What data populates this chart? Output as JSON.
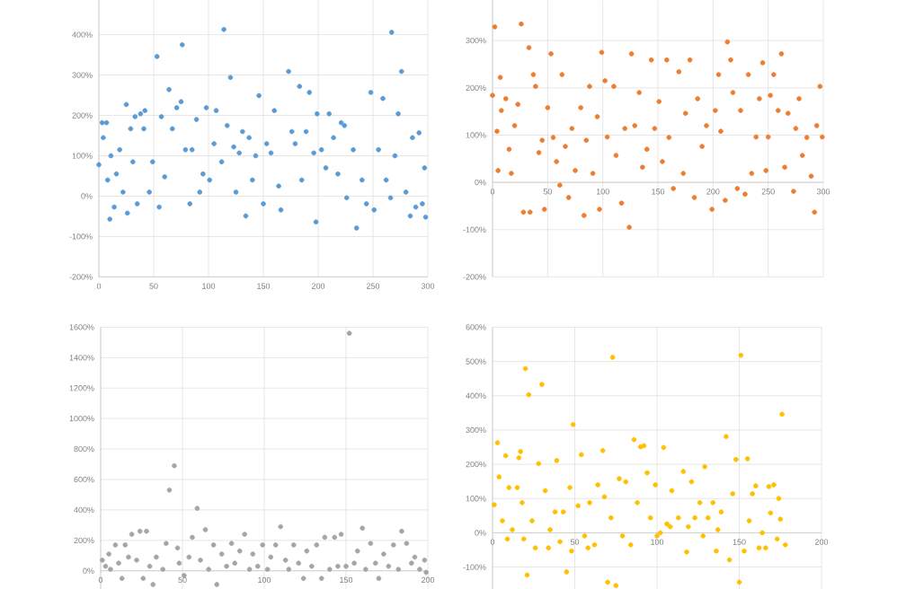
{
  "chart_data": [
    {
      "type": "scatter",
      "color": "#5b9bd5",
      "grid": true,
      "x": [
        0,
        3,
        7,
        4,
        8,
        10,
        11,
        14,
        16,
        19,
        22,
        25,
        26,
        29,
        31,
        33,
        35,
        38,
        41,
        42,
        46,
        49,
        53,
        55,
        57,
        60,
        64,
        67,
        71,
        75,
        76,
        79,
        83,
        85,
        89,
        92,
        95,
        98,
        101,
        105,
        107,
        112,
        114,
        117,
        120,
        123,
        125,
        128,
        131,
        134,
        137,
        140,
        143,
        146,
        150,
        153,
        157,
        160,
        164,
        166,
        173,
        176,
        179,
        183,
        185,
        189,
        192,
        196,
        198,
        199,
        203,
        207,
        210,
        214,
        218,
        221,
        224,
        226,
        232,
        235,
        240,
        244,
        248,
        251,
        255,
        259,
        262,
        266,
        267,
        270,
        273,
        276,
        280,
        284,
        286,
        289,
        292,
        295,
        297,
        298
      ],
      "values": [
        78,
        182,
        182,
        145,
        40,
        -57,
        100,
        -27,
        55,
        115,
        10,
        227,
        -42,
        167,
        85,
        197,
        -19,
        204,
        167,
        212,
        10,
        85,
        346,
        -27,
        197,
        48,
        264,
        167,
        219,
        234,
        375,
        115,
        -19,
        115,
        190,
        10,
        55,
        219,
        40,
        130,
        212,
        85,
        413,
        175,
        294,
        122,
        10,
        107,
        160,
        -49,
        145,
        40,
        100,
        249,
        -19,
        130,
        107,
        212,
        25,
        -34,
        309,
        160,
        130,
        272,
        40,
        160,
        257,
        107,
        -64,
        204,
        115,
        70,
        204,
        145,
        55,
        182,
        175,
        -4,
        115,
        -79,
        40,
        -19,
        257,
        -34,
        115,
        242,
        40,
        -4,
        406,
        100,
        204,
        309,
        10,
        -49,
        145,
        -27,
        157,
        -19,
        70,
        -52
      ],
      "xlim": [
        0,
        300
      ],
      "xticks": [
        0,
        50,
        100,
        150,
        200,
        250,
        300
      ],
      "ylim": [
        -200,
        485
      ],
      "yticks": [
        {
          "value": -200,
          "label": "-200%"
        },
        {
          "value": -100,
          "label": "-100%"
        },
        {
          "value": 0,
          "label": "0%"
        },
        {
          "value": 100,
          "label": "100%"
        },
        {
          "value": 200,
          "label": "200%"
        },
        {
          "value": 300,
          "label": "300%"
        },
        {
          "value": 400,
          "label": "400%"
        }
      ]
    },
    {
      "type": "scatter",
      "color": "#ed7d31",
      "grid": true,
      "x": [
        0,
        2,
        4,
        5,
        7,
        8,
        12,
        15,
        17,
        20,
        23,
        26,
        28,
        33,
        34,
        37,
        39,
        42,
        45,
        47,
        50,
        53,
        55,
        58,
        61,
        63,
        66,
        69,
        72,
        75,
        80,
        83,
        85,
        88,
        91,
        95,
        97,
        99,
        102,
        104,
        110,
        112,
        117,
        120,
        124,
        126,
        129,
        133,
        136,
        140,
        144,
        147,
        151,
        154,
        158,
        160,
        164,
        169,
        173,
        175,
        179,
        183,
        186,
        190,
        194,
        199,
        202,
        205,
        207,
        211,
        213,
        216,
        218,
        222,
        225,
        229,
        232,
        235,
        239,
        242,
        245,
        248,
        250,
        252,
        255,
        259,
        262,
        265,
        268,
        273,
        275,
        278,
        281,
        285,
        289,
        292,
        294,
        297,
        299
      ],
      "values": [
        184,
        329,
        108,
        25,
        222,
        152,
        177,
        70,
        19,
        120,
        165,
        335,
        -63,
        285,
        -63,
        228,
        203,
        63,
        89,
        -57,
        158,
        272,
        95,
        44,
        -6,
        228,
        76,
        -32,
        114,
        25,
        158,
        -70,
        89,
        203,
        19,
        139,
        -57,
        275,
        215,
        96,
        203,
        57,
        -44,
        114,
        -95,
        272,
        120,
        190,
        32,
        70,
        259,
        114,
        171,
        44,
        259,
        95,
        -13,
        234,
        19,
        146,
        259,
        -32,
        177,
        76,
        120,
        -57,
        152,
        228,
        108,
        -38,
        297,
        259,
        190,
        -13,
        152,
        -25,
        228,
        19,
        96,
        177,
        253,
        25,
        96,
        184,
        228,
        152,
        272,
        32,
        146,
        -19,
        114,
        177,
        57,
        95,
        13,
        -63,
        120,
        203,
        96
      ],
      "xlim": [
        0,
        300
      ],
      "xticks": [
        0,
        50,
        100,
        150,
        200,
        250,
        300
      ],
      "ylim": [
        -200,
        385
      ],
      "yticks": [
        {
          "value": -200,
          "label": "-200%"
        },
        {
          "value": -100,
          "label": "-100%"
        },
        {
          "value": 0,
          "label": "0%"
        },
        {
          "value": 100,
          "label": "100%"
        },
        {
          "value": 200,
          "label": "200%"
        },
        {
          "value": 300,
          "label": "300%"
        }
      ]
    },
    {
      "type": "scatter",
      "color": "#a5a5a5",
      "grid": true,
      "x": [
        1,
        3,
        5,
        6,
        9,
        11,
        13,
        15,
        17,
        19,
        22,
        24,
        26,
        28,
        30,
        32,
        34,
        38,
        40,
        42,
        45,
        47,
        48,
        51,
        54,
        56,
        59,
        61,
        64,
        66,
        69,
        71,
        74,
        77,
        80,
        82,
        85,
        88,
        91,
        93,
        96,
        99,
        102,
        104,
        107,
        110,
        113,
        115,
        118,
        121,
        124,
        126,
        129,
        132,
        135,
        137,
        140,
        143,
        145,
        147,
        150,
        152,
        155,
        157,
        160,
        162,
        165,
        168,
        170,
        173,
        176,
        179,
        182,
        184,
        187,
        190,
        192,
        195,
        198,
        199
      ],
      "values": [
        70,
        30,
        110,
        10,
        170,
        50,
        -50,
        170,
        90,
        240,
        70,
        260,
        -50,
        260,
        30,
        -90,
        90,
        10,
        180,
        530,
        690,
        150,
        50,
        -30,
        90,
        220,
        410,
        70,
        270,
        10,
        170,
        -90,
        110,
        30,
        180,
        50,
        130,
        240,
        10,
        110,
        30,
        170,
        10,
        90,
        170,
        290,
        70,
        10,
        170,
        50,
        -50,
        130,
        30,
        170,
        -50,
        220,
        10,
        220,
        30,
        240,
        30,
        1560,
        50,
        130,
        280,
        10,
        180,
        50,
        -50,
        110,
        30,
        170,
        10,
        260,
        180,
        50,
        90,
        10,
        70,
        -10
      ],
      "xlim": [
        0,
        200
      ],
      "xticks": [
        0,
        50,
        100,
        150,
        200
      ],
      "ylim": [
        -122,
        1600
      ],
      "yticks": [
        {
          "value": 0,
          "label": "0%"
        },
        {
          "value": 200,
          "label": "200%"
        },
        {
          "value": 400,
          "label": "400%"
        },
        {
          "value": 600,
          "label": "600%"
        },
        {
          "value": 800,
          "label": "800%"
        },
        {
          "value": 1000,
          "label": "1000%"
        },
        {
          "value": 1200,
          "label": "1200%"
        },
        {
          "value": 1400,
          "label": "1400%"
        },
        {
          "value": 1600,
          "label": "1600%"
        }
      ]
    },
    {
      "type": "scatter",
      "color": "#ffc000",
      "grid": true,
      "x": [
        1,
        3,
        4,
        6,
        8,
        9,
        10,
        12,
        15,
        16,
        17,
        18,
        19,
        20,
        21,
        22,
        24,
        26,
        28,
        30,
        32,
        34,
        35,
        38,
        39,
        41,
        43,
        45,
        47,
        48,
        49,
        52,
        54,
        56,
        58,
        59,
        62,
        64,
        67,
        68,
        70,
        72,
        73,
        75,
        77,
        79,
        81,
        84,
        86,
        88,
        90,
        92,
        94,
        96,
        99,
        100,
        102,
        104,
        106,
        108,
        109,
        113,
        116,
        118,
        119,
        121,
        123,
        126,
        128,
        129,
        131,
        134,
        136,
        137,
        139,
        142,
        144,
        146,
        148,
        150,
        151,
        153,
        155,
        156,
        158,
        160,
        162,
        164,
        166,
        168,
        169,
        171,
        173,
        174,
        175,
        176,
        178
      ],
      "values": [
        82,
        263,
        163,
        35,
        225,
        -18,
        132,
        9,
        132,
        219,
        237,
        88,
        -18,
        479,
        -123,
        403,
        35,
        -44,
        202,
        433,
        123,
        -44,
        9,
        61,
        211,
        -26,
        61,
        -114,
        132,
        -53,
        316,
        79,
        228,
        -9,
        -44,
        88,
        -35,
        140,
        240,
        105,
        -144,
        44,
        512,
        -154,
        158,
        -9,
        149,
        -35,
        272,
        88,
        251,
        254,
        175,
        44,
        140,
        -9,
        0,
        249,
        26,
        18,
        123,
        44,
        179,
        -56,
        18,
        149,
        44,
        88,
        -9,
        193,
        44,
        88,
        -53,
        9,
        61,
        281,
        -79,
        114,
        214,
        -144,
        518,
        -53,
        216,
        35,
        114,
        137,
        -44,
        0,
        -44,
        135,
        58,
        140,
        -18,
        100,
        40,
        346,
        -35
      ],
      "xlim": [
        0,
        200
      ],
      "xticks": [
        0,
        50,
        100,
        150,
        200
      ],
      "ylim": [
        -165,
        600
      ],
      "yticks": [
        {
          "value": -100,
          "label": "-100%"
        },
        {
          "value": 0,
          "label": "0%"
        },
        {
          "value": 100,
          "label": "100%"
        },
        {
          "value": 200,
          "label": "200%"
        },
        {
          "value": 300,
          "label": "300%"
        },
        {
          "value": 400,
          "label": "400%"
        },
        {
          "value": 500,
          "label": "500%"
        },
        {
          "value": 600,
          "label": "600%"
        }
      ]
    }
  ]
}
